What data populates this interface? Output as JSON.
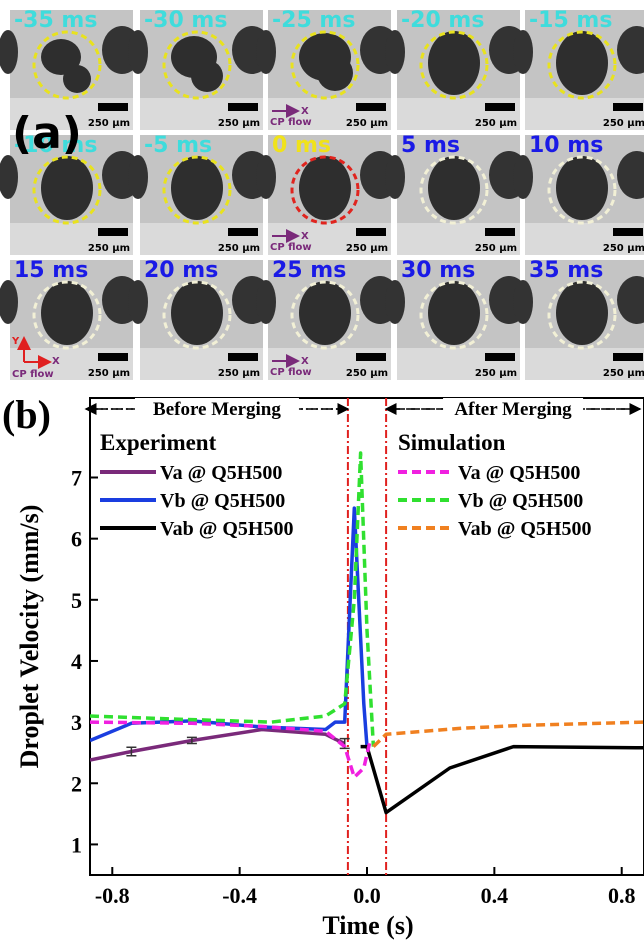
{
  "panel_a": {
    "label": "(a)",
    "scale_bar": "250 µm",
    "flow_label": "CP flow",
    "x_axis": "X",
    "y_axis": "Y",
    "tiles": [
      {
        "label": "-35 ms",
        "color": "#3fdcdc",
        "circle": "#e8e21e"
      },
      {
        "label": "-30 ms",
        "color": "#3fdcdc",
        "circle": "#e8e21e"
      },
      {
        "label": "-25 ms",
        "color": "#3fdcdc",
        "circle": "#e8e21e"
      },
      {
        "label": "-20 ms",
        "color": "#3fdcdc",
        "circle": "#e8e21e"
      },
      {
        "label": "-15 ms",
        "color": "#3fdcdc",
        "circle": "#e8e21e"
      },
      {
        "label": "-10 ms",
        "color": "#3fdcdc",
        "circle": "#e8e21e"
      },
      {
        "label": "-5 ms",
        "color": "#3fdcdc",
        "circle": "#e8e21e"
      },
      {
        "label": "0 ms",
        "color": "#f0e21a",
        "circle": "#e0241e"
      },
      {
        "label": "5 ms",
        "color": "#1a1ae6",
        "circle": "#f2f0d6"
      },
      {
        "label": "10 ms",
        "color": "#1a1ae6",
        "circle": "#f2f0d6"
      },
      {
        "label": "15 ms",
        "color": "#1a1ae6",
        "circle": "#f2f0d6"
      },
      {
        "label": "20 ms",
        "color": "#1a1ae6",
        "circle": "#f2f0d6"
      },
      {
        "label": "25 ms",
        "color": "#1a1ae6",
        "circle": "#f2f0d6"
      },
      {
        "label": "30 ms",
        "color": "#1a1ae6",
        "circle": "#f2f0d6"
      },
      {
        "label": "35 ms",
        "color": "#1a1ae6",
        "circle": "#f2f0d6"
      }
    ]
  },
  "chart_data": {
    "type": "line",
    "panel_label": "(b)",
    "x_label": "Time (s)",
    "y_label": "Droplet Velocity (mm/s)",
    "xlim": [
      -0.87,
      0.87
    ],
    "ylim": [
      0.5,
      8.3
    ],
    "xticks": [
      -0.8,
      -0.4,
      {
        "value": 0,
        "label": "0.0"
      },
      0.4,
      0.8
    ],
    "yticks": [
      1,
      2,
      3,
      4,
      5,
      6,
      7
    ],
    "vlines": [
      -0.06,
      0.06
    ],
    "vline_color": "#e0201e",
    "annotations": [
      "Before Merging",
      "After Merging"
    ],
    "legend_titles": [
      "Experiment",
      "Simulation"
    ],
    "series": [
      {
        "name": "Va @ Q5H500",
        "color": "#7a2a7a",
        "style": "solid",
        "x": [
          -0.87,
          -0.74,
          -0.55,
          -0.33,
          -0.13,
          -0.1,
          -0.07
        ],
        "values": [
          2.38,
          2.52,
          2.7,
          2.88,
          2.8,
          2.72,
          2.65
        ],
        "errors": [
          null,
          0.07,
          0.05,
          null,
          null,
          null,
          0.08
        ]
      },
      {
        "name": "Vb @ Q5H500",
        "color": "#1a3ee0",
        "style": "solid",
        "x": [
          -0.87,
          -0.74,
          -0.55,
          -0.33,
          -0.13,
          -0.1,
          -0.07,
          -0.04,
          -0.01,
          0.0
        ],
        "values": [
          2.7,
          2.98,
          3.02,
          2.92,
          2.88,
          3.0,
          3.0,
          6.5,
          3.3,
          2.6
        ]
      },
      {
        "name": "Vab @ Q5H500",
        "color": "#000000",
        "style": "solid",
        "x": [
          -0.02,
          0.0,
          0.06,
          0.26,
          0.46,
          0.87
        ],
        "values": [
          2.6,
          2.6,
          1.52,
          2.25,
          2.6,
          2.58
        ]
      },
      {
        "name": "Va @ Q5H500",
        "color": "#f020e0",
        "style": "dashed",
        "x": [
          -0.87,
          -0.55,
          -0.33,
          -0.13,
          -0.07,
          -0.04,
          -0.01,
          0.01
        ],
        "values": [
          3.0,
          2.98,
          2.93,
          2.85,
          2.6,
          2.1,
          2.25,
          2.7
        ]
      },
      {
        "name": "Vb @ Q5H500",
        "color": "#30e030",
        "style": "dashed",
        "x": [
          -0.87,
          -0.6,
          -0.3,
          -0.13,
          -0.07,
          -0.04,
          -0.02,
          0.0,
          0.02
        ],
        "values": [
          3.1,
          3.05,
          3.0,
          3.1,
          3.3,
          5.0,
          7.4,
          4.5,
          2.6
        ]
      },
      {
        "name": "Vab @ Q5H500",
        "color": "#f08020",
        "style": "dashed",
        "x": [
          0.02,
          0.06,
          0.3,
          0.5,
          0.87
        ],
        "values": [
          2.6,
          2.8,
          2.9,
          2.95,
          3.0
        ]
      }
    ]
  }
}
